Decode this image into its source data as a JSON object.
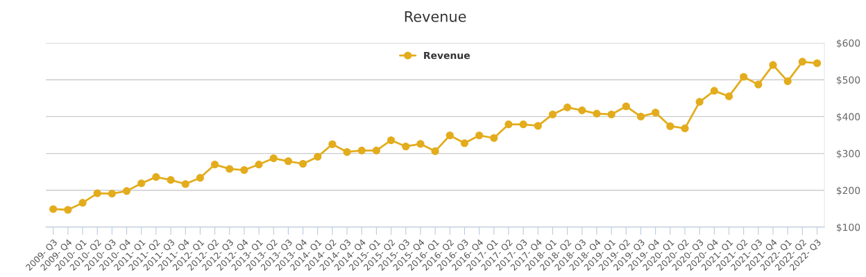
{
  "chart_data": {
    "type": "line",
    "title": "Revenue",
    "categories": [
      "2009- Q3",
      "2009- Q4",
      "2010- Q1",
      "2010- Q2",
      "2010- Q3",
      "2010- Q4",
      "2011- Q1",
      "2011- Q2",
      "2011- Q3",
      "2011- Q4",
      "2012- Q1",
      "2012- Q2",
      "2012- Q3",
      "2012- Q4",
      "2013- Q1",
      "2013- Q2",
      "2013- Q3",
      "2013- Q4",
      "2014- Q1",
      "2014- Q2",
      "2014- Q3",
      "2014- Q4",
      "2015- Q1",
      "2015- Q2",
      "2015- Q3",
      "2015- Q4",
      "2016- Q1",
      "2016- Q2",
      "2016- Q3",
      "2016- Q4",
      "2017- Q1",
      "2017- Q2",
      "2017- Q3",
      "2017- Q4",
      "2018- Q1",
      "2018- Q2",
      "2018- Q3",
      "2018- Q4",
      "2019- Q1",
      "2019- Q2",
      "2019- Q3",
      "2019- Q4",
      "2020- Q1",
      "2020- Q2",
      "2020- Q3",
      "2020- Q4",
      "2021- Q1",
      "2021- Q2",
      "2021- Q3",
      "2021- Q4",
      "2022- Q1",
      "2022- Q2",
      "2022- Q3"
    ],
    "series": [
      {
        "name": "Revenue",
        "color": "#e3ac1c",
        "values": [
          149,
          147,
          166,
          192,
          191,
          198,
          219,
          236,
          228,
          217,
          234,
          270,
          258,
          255,
          270,
          287,
          279,
          272,
          291,
          325,
          304,
          308,
          308,
          336,
          319,
          326,
          306,
          349,
          328,
          349,
          342,
          379,
          379,
          375,
          406,
          425,
          417,
          408,
          406,
          428,
          400,
          411,
          374,
          368,
          440,
          470,
          455,
          508,
          487,
          540,
          496,
          549,
          545
        ]
      }
    ],
    "ylim": [
      100,
      600
    ],
    "yticks": [
      {
        "value": 100,
        "label": "$100"
      },
      {
        "value": 200,
        "label": "$200"
      },
      {
        "value": 300,
        "label": "$300"
      },
      {
        "value": 400,
        "label": "$400"
      },
      {
        "value": 500,
        "label": "$500"
      },
      {
        "value": 600,
        "label": "$600"
      }
    ],
    "grid": "y",
    "legend": "top",
    "marker": "circle",
    "line_style": "solid"
  }
}
